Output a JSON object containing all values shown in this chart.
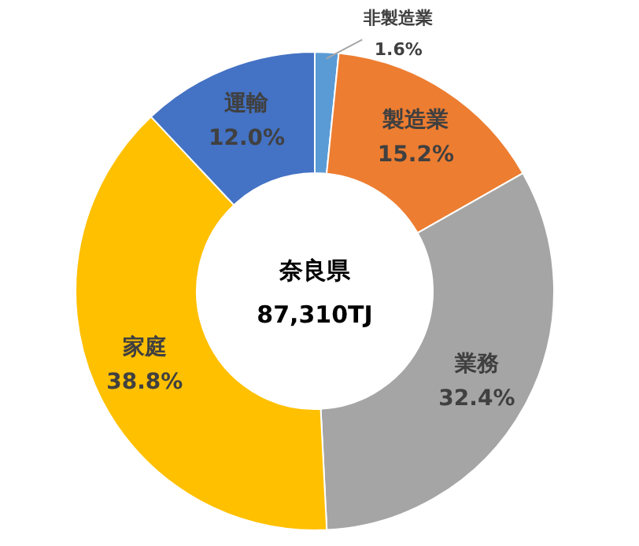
{
  "chart_data": {
    "type": "donut",
    "title": "奈良県",
    "subtitle": "87,310TJ",
    "categories": [
      "非製造業",
      "製造業",
      "業務",
      "家庭",
      "運輸"
    ],
    "values": [
      1.6,
      15.2,
      32.4,
      38.8,
      12.0
    ],
    "value_labels": [
      "1.6%",
      "15.2%",
      "32.4%",
      "38.8%",
      "12.0%"
    ],
    "colors": [
      "#5b9bd5",
      "#ed7d31",
      "#a5a5a5",
      "#ffc000",
      "#4472c4"
    ]
  }
}
